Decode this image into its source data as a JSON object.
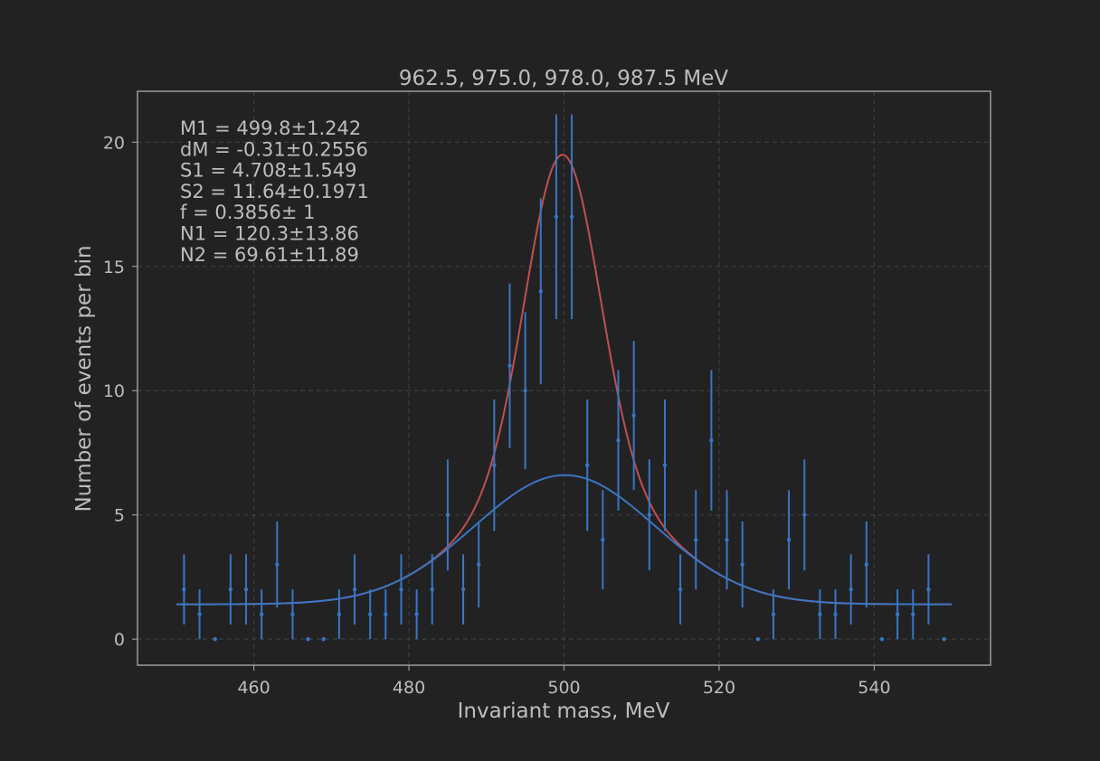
{
  "chart_data": {
    "type": "scatter",
    "title": "962.5, 975.0, 978.0, 987.5 MeV",
    "xlabel": "Invariant mass, MeV",
    "ylabel": "Number of events per bin",
    "xlim": [
      445,
      555
    ],
    "ylim": [
      -1.05,
      22.05
    ],
    "xticks": [
      460,
      480,
      500,
      520,
      540
    ],
    "yticks": [
      0,
      5,
      10,
      15,
      20
    ],
    "grid": true,
    "fit_params": [
      "M1 = 499.8±1.242",
      "dM = -0.31±0.2556",
      "S1 = 4.708±1.549",
      "S2 = 11.64±0.1971",
      "f = 0.3856±    1",
      "N1 = 120.3±13.86",
      "N2 = 69.61±11.89"
    ],
    "series": [
      {
        "type": "errorbar",
        "color": "#3a75c4",
        "x": [
          451,
          453,
          455,
          457,
          459,
          461,
          463,
          465,
          467,
          469,
          471,
          473,
          475,
          477,
          479,
          481,
          483,
          485,
          487,
          489,
          491,
          493,
          495,
          497,
          499,
          501,
          503,
          505,
          507,
          509,
          511,
          513,
          515,
          517,
          519,
          521,
          523,
          525,
          527,
          529,
          531,
          533,
          535,
          537,
          539,
          541,
          543,
          545,
          547,
          549
        ],
        "y": [
          2,
          1,
          0,
          2,
          2,
          1,
          3,
          1,
          0,
          0,
          1,
          2,
          1,
          1,
          2,
          1,
          2,
          5,
          2,
          3,
          7,
          11,
          10,
          14,
          17,
          17,
          7,
          4,
          8,
          9,
          5,
          7,
          2,
          4,
          8,
          4,
          3,
          0,
          1,
          4,
          5,
          1,
          1,
          2,
          3,
          0,
          1,
          1,
          2,
          0
        ]
      },
      {
        "type": "line",
        "color": "#c24f4f",
        "function": "double_gaussian_fit",
        "baseline": 1.4,
        "components": [
          {
            "amp": 12.9,
            "mu": 499.8,
            "sigma": 4.708
          },
          {
            "amp": 5.2,
            "mu": 500.11,
            "sigma": 11.64
          }
        ],
        "x_range": [
          450,
          550
        ]
      },
      {
        "type": "line",
        "color": "#3a75c4",
        "function": "gaussian_fit",
        "baseline": 1.4,
        "components": [
          {
            "amp": 5.2,
            "mu": 500.11,
            "sigma": 11.64
          }
        ],
        "x_range": [
          450,
          550
        ]
      }
    ]
  }
}
